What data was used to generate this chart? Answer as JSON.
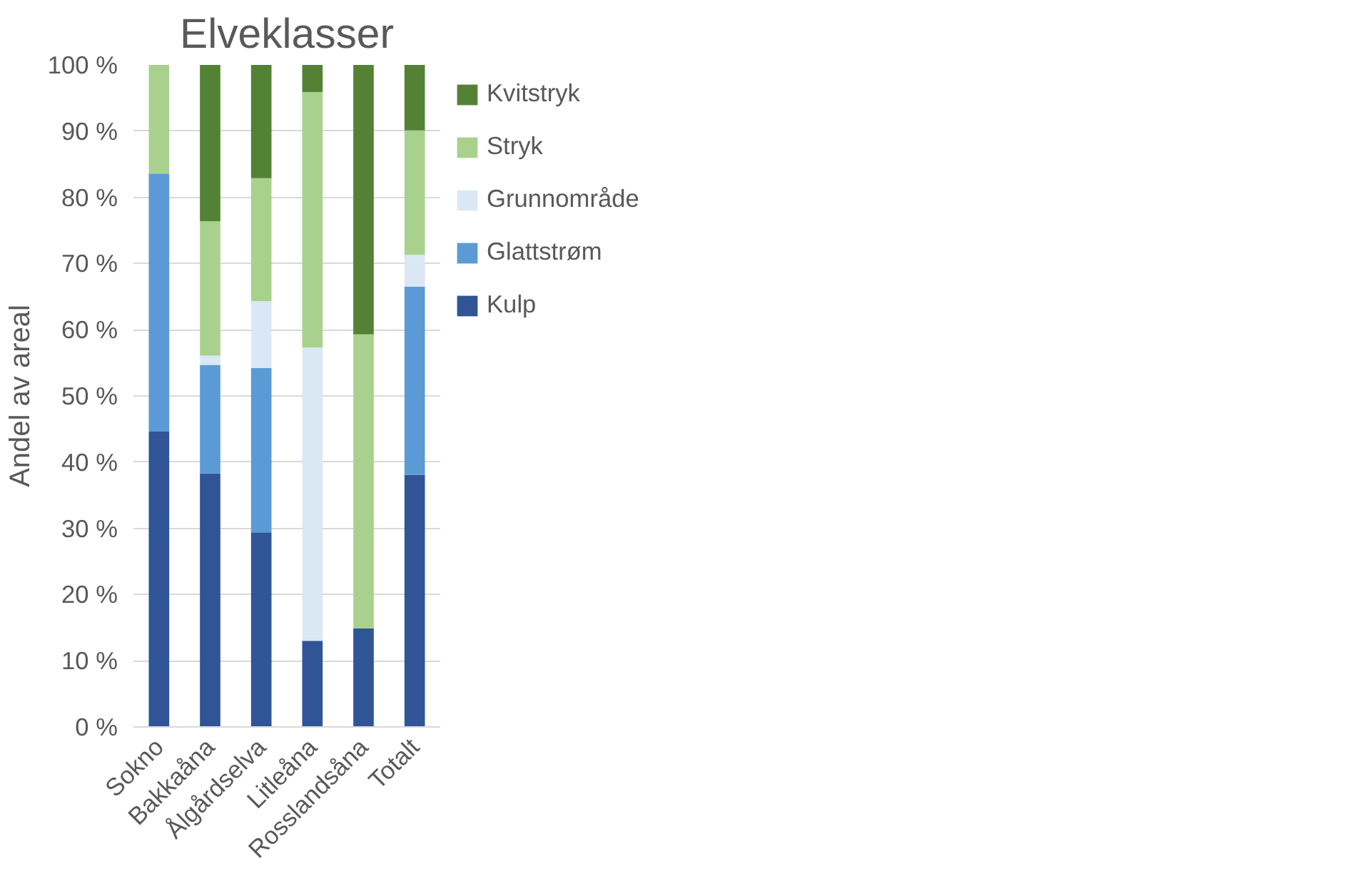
{
  "chart_data": {
    "type": "bar",
    "title": "Elveklasser",
    "ylabel": "Andel av areal",
    "stacked": true,
    "grid": "y",
    "legend": "right",
    "categories": [
      "Sokno",
      "Bakkaåna",
      "Ålgårdselva",
      "Litleåna",
      "Rosslandsåna",
      "Totalt"
    ],
    "ylim": [
      0,
      100
    ],
    "yticks": [
      {
        "value": 0,
        "label": "0 %"
      },
      {
        "value": 10,
        "label": "10 %"
      },
      {
        "value": 20,
        "label": "20 %"
      },
      {
        "value": 30,
        "label": "30 %"
      },
      {
        "value": 40,
        "label": "40 %"
      },
      {
        "value": 50,
        "label": "50 %"
      },
      {
        "value": 60,
        "label": "60 %"
      },
      {
        "value": 70,
        "label": "70 %"
      },
      {
        "value": 80,
        "label": "80 %"
      },
      {
        "value": 90,
        "label": "90 %"
      },
      {
        "value": 100,
        "label": "100 %"
      }
    ],
    "series": [
      {
        "name": "Kulp",
        "color": "#2f5597",
        "values": [
          44.6,
          38.3,
          29.4,
          13.0,
          14.9,
          38.1
        ]
      },
      {
        "name": "Glattstrøm",
        "color": "#5b9bd5",
        "values": [
          39.0,
          16.4,
          24.8,
          0,
          0,
          28.4
        ]
      },
      {
        "name": "Grunnområde",
        "color": "#dae8f6",
        "values": [
          0,
          1.4,
          10.1,
          44.3,
          0,
          4.8
        ]
      },
      {
        "name": "Stryk",
        "color": "#a9d18e",
        "values": [
          16.4,
          20.3,
          18.6,
          38.6,
          44.4,
          18.8
        ]
      },
      {
        "name": "Kvitstryk",
        "color": "#548235",
        "values": [
          0,
          23.6,
          17.1,
          4.1,
          40.7,
          9.9
        ]
      }
    ]
  }
}
